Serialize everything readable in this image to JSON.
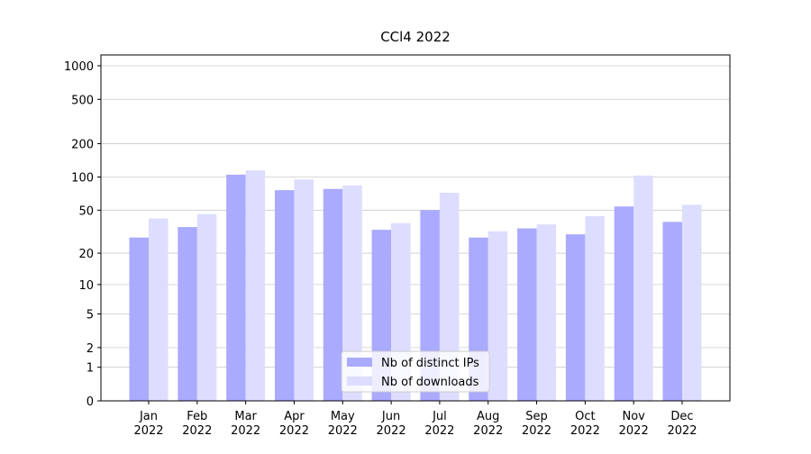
{
  "chart_data": {
    "type": "bar",
    "title": "CCl4 2022",
    "categories": [
      "Jan\n2022",
      "Feb\n2022",
      "Mar\n2022",
      "Apr\n2022",
      "May\n2022",
      "Jun\n2022",
      "Jul\n2022",
      "Aug\n2022",
      "Sep\n2022",
      "Oct\n2022",
      "Nov\n2022",
      "Dec\n2022"
    ],
    "series": [
      {
        "name": "Nb of distinct IPs",
        "color": "#aaaaff",
        "values": [
          28,
          35,
          105,
          76,
          78,
          33,
          50,
          28,
          34,
          30,
          54,
          39
        ]
      },
      {
        "name": "Nb of downloads",
        "color": "#ddddff",
        "values": [
          42,
          46,
          115,
          95,
          84,
          38,
          72,
          32,
          37,
          44,
          103,
          56
        ]
      }
    ],
    "yscale": "log1p",
    "ylim": [
      0,
      1250
    ],
    "yticks": [
      0,
      1,
      2,
      5,
      10,
      20,
      50,
      100,
      200,
      500,
      1000
    ],
    "grid": true,
    "legend": "lower center"
  }
}
